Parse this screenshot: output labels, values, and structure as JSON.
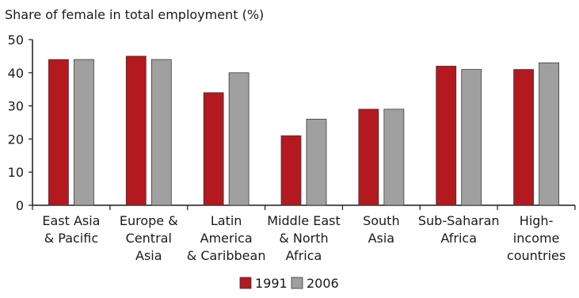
{
  "chart_data": {
    "type": "bar",
    "title": "Share of female in total employment (%)",
    "categories": [
      [
        "East Asia",
        "& Pacific"
      ],
      [
        "Europe &",
        "Central",
        "Asia"
      ],
      [
        "Latin",
        "America",
        "& Caribbean"
      ],
      [
        "Middle East",
        "& North",
        "Africa"
      ],
      [
        "South",
        "Asia"
      ],
      [
        "Sub-Saharan",
        "Africa"
      ],
      [
        "High-",
        "income",
        "countries"
      ]
    ],
    "series": [
      {
        "name": "1991",
        "color": "#b3191e",
        "values": [
          44,
          45,
          34,
          21,
          29,
          42,
          41
        ]
      },
      {
        "name": "2006",
        "color": "#a0a0a0",
        "values": [
          44,
          44,
          40,
          26,
          29,
          41,
          43
        ]
      }
    ],
    "ylim": [
      0,
      50
    ],
    "yticks": [
      0,
      10,
      20,
      30,
      40,
      50
    ],
    "grid": false,
    "legend_position": "bottom-center"
  }
}
